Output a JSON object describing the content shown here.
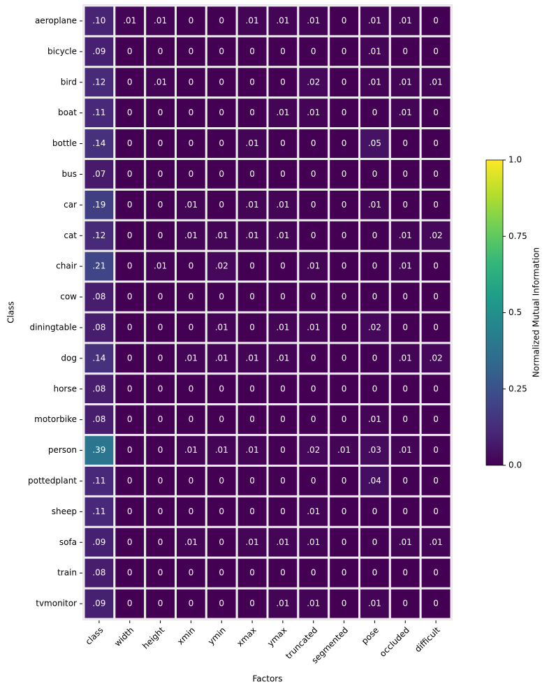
{
  "chart_data": {
    "type": "heatmap",
    "xlabel": "Factors",
    "ylabel": "Class",
    "colorbar_label": "Normalized Mutual Information",
    "colormap": "viridis",
    "x": [
      "class",
      "width",
      "height",
      "xmin",
      "ymin",
      "xmax",
      "ymax",
      "truncated",
      "segmented",
      "pose",
      "occluded",
      "difficult"
    ],
    "y": [
      "aeroplane",
      "bicycle",
      "bird",
      "boat",
      "bottle",
      "bus",
      "car",
      "cat",
      "chair",
      "cow",
      "diningtable",
      "dog",
      "horse",
      "motorbike",
      "person",
      "pottedplant",
      "sheep",
      "sofa",
      "train",
      "tvmonitor"
    ],
    "values": [
      [
        0.1,
        0.01,
        0.01,
        0,
        0,
        0.01,
        0.01,
        0.01,
        0,
        0.01,
        0.01,
        0
      ],
      [
        0.09,
        0,
        0,
        0,
        0,
        0,
        0,
        0,
        0,
        0.01,
        0,
        0
      ],
      [
        0.12,
        0,
        0.01,
        0,
        0,
        0,
        0,
        0.02,
        0,
        0.01,
        0.01,
        0.01
      ],
      [
        0.11,
        0,
        0,
        0,
        0,
        0,
        0.01,
        0.01,
        0,
        0,
        0.01,
        0
      ],
      [
        0.14,
        0,
        0,
        0,
        0,
        0.01,
        0,
        0,
        0,
        0.05,
        0,
        0
      ],
      [
        0.07,
        0,
        0,
        0,
        0,
        0,
        0,
        0,
        0,
        0,
        0,
        0
      ],
      [
        0.19,
        0,
        0,
        0.01,
        0,
        0.01,
        0.01,
        0,
        0,
        0.01,
        0,
        0
      ],
      [
        0.12,
        0,
        0,
        0.01,
        0.01,
        0.01,
        0.01,
        0,
        0,
        0,
        0.01,
        0.02
      ],
      [
        0.21,
        0,
        0.01,
        0,
        0.02,
        0,
        0,
        0.01,
        0,
        0,
        0.01,
        0
      ],
      [
        0.08,
        0,
        0,
        0,
        0,
        0,
        0,
        0,
        0,
        0,
        0,
        0
      ],
      [
        0.08,
        0,
        0,
        0,
        0.01,
        0,
        0.01,
        0.01,
        0,
        0.02,
        0,
        0
      ],
      [
        0.14,
        0,
        0,
        0.01,
        0.01,
        0.01,
        0.01,
        0,
        0,
        0,
        0.01,
        0.02
      ],
      [
        0.08,
        0,
        0,
        0,
        0,
        0,
        0,
        0,
        0,
        0,
        0,
        0
      ],
      [
        0.08,
        0,
        0,
        0,
        0,
        0,
        0,
        0,
        0,
        0.01,
        0,
        0
      ],
      [
        0.39,
        0,
        0,
        0.01,
        0.01,
        0.01,
        0,
        0.02,
        0.01,
        0.03,
        0.01,
        0
      ],
      [
        0.11,
        0,
        0,
        0,
        0,
        0,
        0,
        0,
        0,
        0.04,
        0,
        0
      ],
      [
        0.11,
        0,
        0,
        0,
        0,
        0,
        0,
        0.01,
        0,
        0,
        0,
        0
      ],
      [
        0.09,
        0,
        0,
        0.01,
        0,
        0.01,
        0.01,
        0.01,
        0,
        0,
        0.01,
        0.01
      ],
      [
        0.08,
        0,
        0,
        0,
        0,
        0,
        0,
        0,
        0,
        0,
        0,
        0
      ],
      [
        0.09,
        0,
        0,
        0,
        0,
        0,
        0.01,
        0.01,
        0,
        0.01,
        0,
        0
      ]
    ],
    "value_labels": [
      [
        ".10",
        ".01",
        ".01",
        "0",
        "0",
        ".01",
        ".01",
        ".01",
        "0",
        ".01",
        ".01",
        "0"
      ],
      [
        ".09",
        "0",
        "0",
        "0",
        "0",
        "0",
        "0",
        "0",
        "0",
        ".01",
        "0",
        "0"
      ],
      [
        ".12",
        "0",
        ".01",
        "0",
        "0",
        "0",
        "0",
        ".02",
        "0",
        ".01",
        ".01",
        ".01"
      ],
      [
        ".11",
        "0",
        "0",
        "0",
        "0",
        "0",
        ".01",
        ".01",
        "0",
        "0",
        ".01",
        "0"
      ],
      [
        ".14",
        "0",
        "0",
        "0",
        "0",
        ".01",
        "0",
        "0",
        "0",
        ".05",
        "0",
        "0"
      ],
      [
        ".07",
        "0",
        "0",
        "0",
        "0",
        "0",
        "0",
        "0",
        "0",
        "0",
        "0",
        "0"
      ],
      [
        ".19",
        "0",
        "0",
        ".01",
        "0",
        ".01",
        ".01",
        "0",
        "0",
        ".01",
        "0",
        "0"
      ],
      [
        ".12",
        "0",
        "0",
        ".01",
        ".01",
        ".01",
        ".01",
        "0",
        "0",
        "0",
        ".01",
        ".02"
      ],
      [
        ".21",
        "0",
        ".01",
        "0",
        ".02",
        "0",
        "0",
        ".01",
        "0",
        "0",
        ".01",
        "0"
      ],
      [
        ".08",
        "0",
        "0",
        "0",
        "0",
        "0",
        "0",
        "0",
        "0",
        "0",
        "0",
        "0"
      ],
      [
        ".08",
        "0",
        "0",
        "0",
        ".01",
        "0",
        ".01",
        ".01",
        "0",
        ".02",
        "0",
        "0"
      ],
      [
        ".14",
        "0",
        "0",
        ".01",
        ".01",
        ".01",
        ".01",
        "0",
        "0",
        "0",
        ".01",
        ".02"
      ],
      [
        ".08",
        "0",
        "0",
        "0",
        "0",
        "0",
        "0",
        "0",
        "0",
        "0",
        "0",
        "0"
      ],
      [
        ".08",
        "0",
        "0",
        "0",
        "0",
        "0",
        "0",
        "0",
        "0",
        ".01",
        "0",
        "0"
      ],
      [
        ".39",
        "0",
        "0",
        ".01",
        ".01",
        ".01",
        "0",
        ".02",
        ".01",
        ".03",
        ".01",
        "0"
      ],
      [
        ".11",
        "0",
        "0",
        "0",
        "0",
        "0",
        "0",
        "0",
        "0",
        ".04",
        "0",
        "0"
      ],
      [
        ".11",
        "0",
        "0",
        "0",
        "0",
        "0",
        "0",
        ".01",
        "0",
        "0",
        "0",
        "0"
      ],
      [
        ".09",
        "0",
        "0",
        ".01",
        "0",
        ".01",
        ".01",
        ".01",
        "0",
        "0",
        ".01",
        ".01"
      ],
      [
        ".08",
        "0",
        "0",
        "0",
        "0",
        "0",
        "0",
        "0",
        "0",
        "0",
        "0",
        "0"
      ],
      [
        ".09",
        "0",
        "0",
        "0",
        "0",
        "0",
        ".01",
        ".01",
        "0",
        ".01",
        "0",
        "0"
      ]
    ],
    "clim": [
      0,
      1
    ],
    "cticks": [
      {
        "value": 0,
        "label": "0.0"
      },
      0.25,
      0.5,
      0.75,
      {
        "value": 1,
        "label": "1.0"
      }
    ]
  }
}
